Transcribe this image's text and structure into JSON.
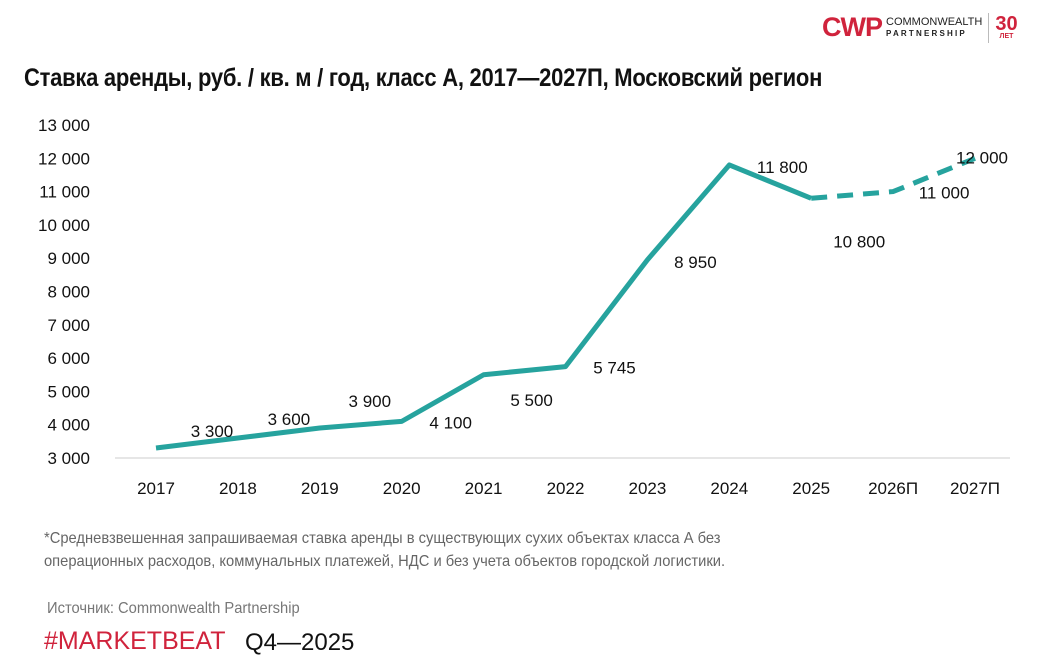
{
  "logo": {
    "mark": "CWP",
    "name1": "COMMONWEALTH",
    "name2": "PARTNERSHIP",
    "years": "30",
    "years_label": "ЛЕТ"
  },
  "chart_data": {
    "type": "line",
    "title": "Ставка аренды, руб. / кв. м / год, класс А, 2017—2027П, Московский регион",
    "categories": [
      "2017",
      "2018",
      "2019",
      "2020",
      "2021",
      "2022",
      "2023",
      "2024",
      "2025",
      "2026П",
      "2027П"
    ],
    "values": [
      3300,
      3600,
      3900,
      4100,
      5500,
      5745,
      8950,
      11800,
      10800,
      11000,
      12000
    ],
    "labels": [
      "3 300",
      "3 600",
      "3 900",
      "4 100",
      "5 500",
      "5 745",
      "8 950",
      "11 800",
      "10 800",
      "11 000",
      "12 000"
    ],
    "forecast_from": "2025",
    "ylim": [
      3000,
      13000
    ],
    "yticks": [
      "3 000",
      "4 000",
      "5 000",
      "6 000",
      "7 000",
      "8 000",
      "9 000",
      "10 000",
      "11 000",
      "12 000",
      "13 000"
    ],
    "grid": false,
    "color": "#26a39e"
  },
  "footnote": {
    "line1": "*Средневзвешенная запрашиваемая ставка аренды в существующих сухих объектах класса А без",
    "line2": "операционных расходов, коммунальных платежей, НДС и без учета объектов городской логистики."
  },
  "source": "Источник: Commonwealth Partnership",
  "brand": "#MARKETBEAT",
  "period": "Q4—2025"
}
